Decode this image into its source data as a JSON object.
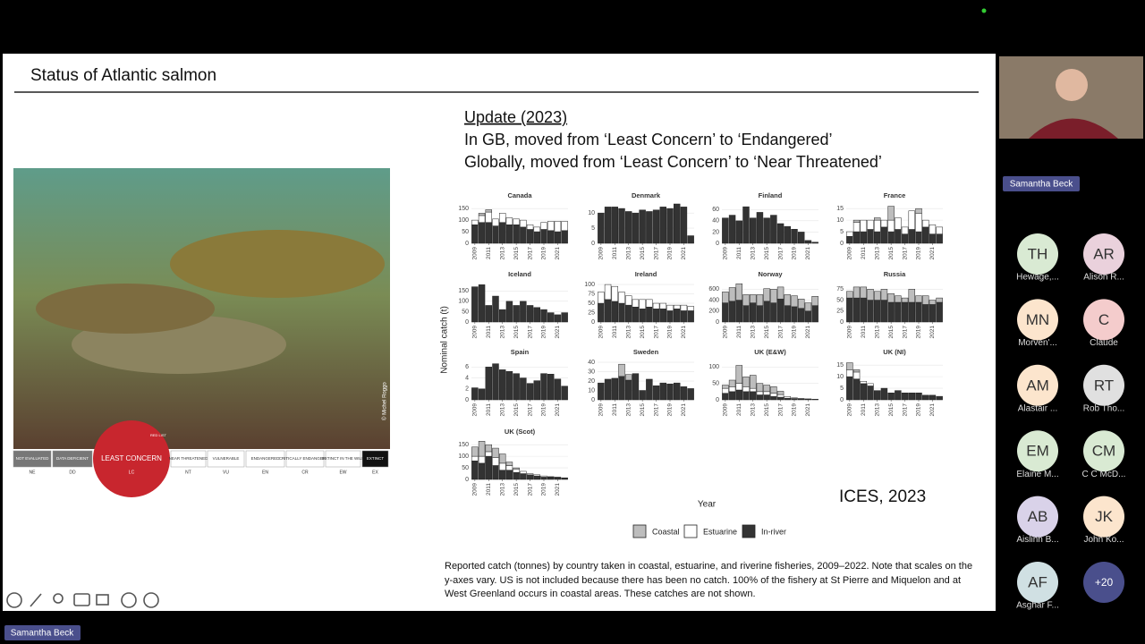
{
  "slide": {
    "title": "Status of Atlantic salmon",
    "update": "Update (2023)",
    "lines": [
      "In GB, moved from ‘Least Concern’ to ‘Endangered’",
      "Globally, moved from ‘Least Concern’ to ‘Near Threatened’"
    ],
    "photo_credit": "© Michel Roggo",
    "iucn": {
      "categories": [
        {
          "name": "NOT EVALUATED",
          "code": "NE"
        },
        {
          "name": "DATA DEFICIENT",
          "code": "DD"
        },
        {
          "name": "LEAST CONCERN",
          "code": "LC"
        },
        {
          "name": "NEAR THREATENED",
          "code": "NT"
        },
        {
          "name": "VULNERABLE",
          "code": "VU"
        },
        {
          "name": "ENDANGERED",
          "code": "EN"
        },
        {
          "name": "CRITICALLY ENDANGERED",
          "code": "CR"
        },
        {
          "name": "EXTINCT IN THE WILD",
          "code": "EW"
        },
        {
          "name": "EXTINCT",
          "code": "EX"
        }
      ],
      "logo": "RED LIST"
    },
    "source": "ICES, 2023",
    "caption": "Reported catch (tonnes) by country taken in coastal, estuarine, and riverine fisheries, 2009–2022. Note that scales on the y-axes vary. US is not included because there has been no catch. 100% of the fishery at St Pierre and Miquelon and at West Greenland occurs in coastal areas. These catches are not shown.",
    "chart": {
      "type": "bar",
      "ylabel": "Nominal catch (t)",
      "xlabel": "Year",
      "x": [
        2009,
        2010,
        2011,
        2012,
        2013,
        2014,
        2015,
        2016,
        2017,
        2018,
        2019,
        2020,
        2021,
        2022
      ],
      "xlim": [
        2008.5,
        2022.5
      ],
      "xticks": [
        2009,
        2011,
        2013,
        2015,
        2017,
        2019,
        2021
      ],
      "legend": [
        {
          "name": "Coastal",
          "color": "#bdbdbd"
        },
        {
          "name": "Estuarine",
          "color": "#ffffff"
        },
        {
          "name": "In-river",
          "color": "#333333"
        }
      ],
      "panels": [
        {
          "name": "Canada",
          "ylim": [
            0,
            170
          ],
          "yticks": [
            0,
            50,
            100,
            150
          ],
          "in_river": [
            80,
            90,
            90,
            75,
            90,
            80,
            80,
            70,
            60,
            50,
            60,
            55,
            50,
            55
          ],
          "estuarine": [
            20,
            30,
            45,
            30,
            40,
            30,
            25,
            30,
            20,
            20,
            30,
            40,
            45,
            40
          ],
          "coastal": [
            0,
            10,
            10,
            0,
            0,
            0,
            0,
            0,
            0,
            0,
            0,
            0,
            0,
            0
          ]
        },
        {
          "name": "Denmark",
          "ylim": [
            0,
            13
          ],
          "yticks": [
            0,
            5,
            10
          ],
          "in_river": [
            10,
            12,
            12,
            11.5,
            10.5,
            10,
            11,
            10.5,
            11,
            12,
            11.5,
            13,
            12,
            2.5
          ],
          "estuarine": [
            0,
            0,
            0,
            0,
            0,
            0,
            0,
            0,
            0,
            0,
            0,
            0,
            0,
            0
          ],
          "coastal": [
            0,
            0,
            0,
            0,
            0,
            0,
            0,
            0,
            0,
            0,
            0,
            0,
            0,
            0
          ]
        },
        {
          "name": "Finland",
          "ylim": [
            0,
            70
          ],
          "yticks": [
            0,
            20,
            40,
            60
          ],
          "in_river": [
            45,
            50,
            40,
            65,
            45,
            55,
            45,
            50,
            35,
            30,
            25,
            20,
            5,
            2
          ],
          "estuarine": [
            0,
            0,
            0,
            0,
            0,
            0,
            0,
            0,
            0,
            0,
            0,
            0,
            0,
            0
          ],
          "coastal": [
            0,
            0,
            0,
            0,
            0,
            0,
            0,
            0,
            0,
            0,
            0,
            0,
            0,
            0
          ]
        },
        {
          "name": "France",
          "ylim": [
            0,
            17
          ],
          "yticks": [
            0,
            5,
            10,
            15
          ],
          "in_river": [
            3,
            5,
            5,
            6,
            5,
            7,
            5,
            6,
            4,
            6,
            5,
            7,
            4,
            4
          ],
          "estuarine": [
            2,
            4,
            5,
            4,
            5,
            3,
            5,
            5,
            3,
            8,
            8,
            3,
            4,
            3
          ],
          "coastal": [
            0,
            1,
            0,
            0,
            1,
            0,
            6,
            0,
            0,
            0,
            2,
            0,
            0,
            0
          ]
        },
        {
          "name": "Iceland",
          "ylim": [
            0,
            190
          ],
          "yticks": [
            0,
            50,
            100,
            150
          ],
          "in_river": [
            170,
            180,
            80,
            125,
            60,
            100,
            80,
            100,
            80,
            70,
            60,
            45,
            35,
            45
          ],
          "estuarine": [
            0,
            0,
            0,
            0,
            0,
            0,
            0,
            0,
            0,
            0,
            0,
            0,
            0,
            0
          ],
          "coastal": [
            0,
            0,
            0,
            0,
            0,
            0,
            0,
            0,
            0,
            0,
            0,
            0,
            0,
            0
          ]
        },
        {
          "name": "Ireland",
          "ylim": [
            0,
            105
          ],
          "yticks": [
            0,
            25,
            50,
            75,
            100
          ],
          "in_river": [
            50,
            60,
            55,
            50,
            45,
            40,
            35,
            40,
            35,
            35,
            30,
            35,
            30,
            30
          ],
          "estuarine": [
            30,
            40,
            40,
            30,
            25,
            20,
            25,
            20,
            15,
            15,
            15,
            10,
            15,
            12
          ],
          "coastal": [
            0,
            0,
            0,
            0,
            0,
            0,
            0,
            0,
            0,
            0,
            0,
            0,
            0,
            0
          ]
        },
        {
          "name": "Norway",
          "ylim": [
            0,
            720
          ],
          "yticks": [
            0,
            200,
            400,
            600
          ],
          "in_river": [
            350,
            380,
            400,
            300,
            350,
            300,
            380,
            350,
            420,
            300,
            280,
            250,
            200,
            300
          ],
          "estuarine": [
            0,
            0,
            0,
            0,
            0,
            0,
            0,
            0,
            0,
            0,
            0,
            0,
            0,
            0
          ],
          "coastal": [
            200,
            250,
            300,
            200,
            150,
            200,
            230,
            250,
            220,
            200,
            200,
            170,
            150,
            170
          ]
        },
        {
          "name": "Russia",
          "ylim": [
            0,
            90
          ],
          "yticks": [
            0,
            25,
            50,
            75
          ],
          "in_river": [
            55,
            55,
            55,
            50,
            50,
            50,
            45,
            45,
            45,
            45,
            45,
            40,
            40,
            45
          ],
          "estuarine": [
            0,
            0,
            0,
            0,
            0,
            0,
            0,
            0,
            0,
            0,
            0,
            0,
            0,
            0
          ],
          "coastal": [
            15,
            25,
            25,
            25,
            20,
            25,
            20,
            15,
            10,
            30,
            15,
            20,
            10,
            10
          ]
        },
        {
          "name": "Spain",
          "ylim": [
            0,
            7.2
          ],
          "yticks": [
            0,
            2,
            4,
            6
          ],
          "in_river": [
            2.2,
            2,
            6,
            6.6,
            5.5,
            5.2,
            4.8,
            4,
            3,
            3.5,
            4.8,
            4.7,
            3.8,
            2.5
          ],
          "estuarine": [
            0,
            0,
            0,
            0,
            0,
            0,
            0,
            0,
            0,
            0,
            0,
            0,
            0,
            0
          ],
          "coastal": [
            0,
            0,
            0,
            0,
            0,
            0,
            0,
            0,
            0,
            0,
            0,
            0,
            0,
            0
          ]
        },
        {
          "name": "Sweden",
          "ylim": [
            0,
            42
          ],
          "yticks": [
            0,
            10,
            20,
            30,
            40
          ],
          "in_river": [
            18,
            22,
            23,
            25,
            21,
            28,
            10,
            22,
            15,
            18,
            17,
            18,
            14,
            12
          ],
          "estuarine": [
            0,
            0,
            0,
            0,
            0,
            0,
            0,
            0,
            0,
            0,
            0,
            0,
            0,
            0
          ],
          "coastal": [
            0,
            0,
            0,
            13,
            6,
            0,
            0,
            0,
            0,
            0,
            0,
            0,
            0,
            0
          ]
        },
        {
          "name": "UK (E&W)",
          "ylim": [
            0,
            120
          ],
          "yticks": [
            0,
            50,
            100
          ],
          "in_river": [
            20,
            25,
            30,
            25,
            25,
            15,
            15,
            10,
            8,
            5,
            4,
            3,
            2,
            1
          ],
          "estuarine": [
            15,
            15,
            20,
            15,
            10,
            10,
            10,
            10,
            8,
            5,
            2,
            1,
            1,
            1
          ],
          "coastal": [
            10,
            20,
            55,
            30,
            40,
            25,
            20,
            20,
            10,
            0,
            0,
            0,
            0,
            0
          ]
        },
        {
          "name": "UK (NI)",
          "ylim": [
            0,
            17
          ],
          "yticks": [
            0,
            5,
            10,
            15
          ],
          "in_river": [
            10,
            9,
            7,
            6,
            4,
            5,
            3,
            4,
            3,
            3,
            3,
            2,
            2,
            1.5
          ],
          "estuarine": [
            3,
            3,
            1,
            1,
            0,
            0,
            0,
            0,
            0,
            0,
            0,
            0,
            0,
            0
          ],
          "coastal": [
            3,
            1,
            0,
            0,
            0,
            0,
            0,
            0,
            0,
            0,
            0,
            0,
            0,
            0
          ]
        },
        {
          "name": "UK (Scot)",
          "ylim": [
            0,
            170
          ],
          "yticks": [
            0,
            50,
            100,
            150
          ],
          "in_river": [
            80,
            70,
            100,
            60,
            40,
            40,
            30,
            25,
            20,
            15,
            10,
            10,
            8,
            5
          ],
          "estuarine": [
            20,
            30,
            20,
            35,
            30,
            20,
            15,
            10,
            5,
            5,
            5,
            2,
            2,
            2
          ],
          "coastal": [
            40,
            65,
            30,
            40,
            40,
            15,
            5,
            0,
            0,
            0,
            0,
            0,
            0,
            0
          ]
        }
      ]
    }
  },
  "sidebar": {
    "speaker": "Samantha Beck",
    "participants": [
      {
        "initials": "TH",
        "name": "Hewage,...",
        "color": "#d9ead3"
      },
      {
        "initials": "AR",
        "name": "Alison R...",
        "color": "#ead1dc"
      },
      {
        "initials": "MN",
        "name": "Morven'...",
        "color": "#fce5cd"
      },
      {
        "initials": "C",
        "name": "Claude",
        "color": "#f4cccc"
      },
      {
        "initials": "AM",
        "name": "Alastair ...",
        "color": "#fce5cd"
      },
      {
        "initials": "RT",
        "name": "Rob Tho...",
        "color": "#e0e0e0"
      },
      {
        "initials": "EM",
        "name": "Elaine M...",
        "color": "#d9ead3"
      },
      {
        "initials": "CM",
        "name": "C C McD...",
        "color": "#d9ead3"
      },
      {
        "initials": "AB",
        "name": "Aislinn B...",
        "color": "#d9d2e9"
      },
      {
        "initials": "JK",
        "name": "John Ko...",
        "color": "#fce5cd"
      },
      {
        "initials": "AF",
        "name": "Asghar F...",
        "color": "#d0e0e3"
      }
    ],
    "more": "+20"
  },
  "footer": {
    "speaker": "Samantha Beck"
  }
}
